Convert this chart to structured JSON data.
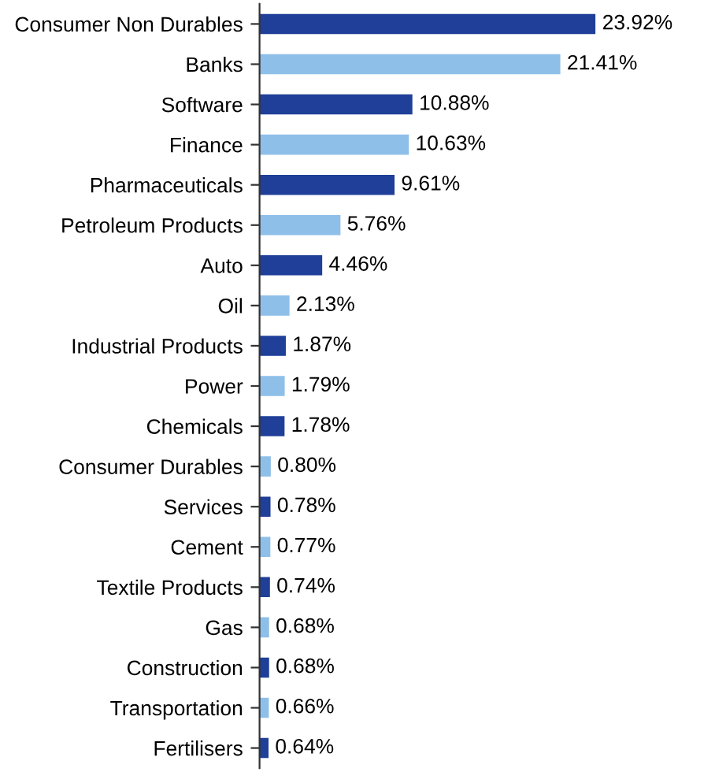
{
  "chart_data": {
    "type": "bar",
    "orientation": "horizontal",
    "categories": [
      "Consumer Non Durables",
      "Banks",
      "Software",
      "Finance",
      "Pharmaceuticals",
      "Petroleum Products",
      "Auto",
      "Oil",
      "Industrial Products",
      "Power",
      "Chemicals",
      "Consumer Durables",
      "Services",
      "Cement",
      "Textile Products",
      "Gas",
      "Construction",
      "Transportation",
      "Fertilisers"
    ],
    "values": [
      23.92,
      21.41,
      10.88,
      10.63,
      9.61,
      5.76,
      4.46,
      2.13,
      1.87,
      1.79,
      1.78,
      0.8,
      0.78,
      0.77,
      0.74,
      0.68,
      0.68,
      0.66,
      0.64
    ],
    "colors": [
      "#1f3f98",
      "#8ebfe9",
      "#1f3f98",
      "#8ebfe9",
      "#1f3f98",
      "#8ebfe9",
      "#1f3f98",
      "#8ebfe9",
      "#1f3f98",
      "#8ebfe9",
      "#1f3f98",
      "#8ebfe9",
      "#1f3f98",
      "#8ebfe9",
      "#1f3f98",
      "#8ebfe9",
      "#1f3f98",
      "#8ebfe9",
      "#1f3f98"
    ],
    "value_labels": [
      "23.92%",
      "21.41%",
      "10.88%",
      "10.63%",
      "9.61%",
      "5.76%",
      "4.46%",
      "2.13%",
      "1.87%",
      "1.79%",
      "1.78%",
      "0.80%",
      "0.78%",
      "0.77%",
      "0.74%",
      "0.68%",
      "0.68%",
      "0.66%",
      "0.64%"
    ]
  }
}
